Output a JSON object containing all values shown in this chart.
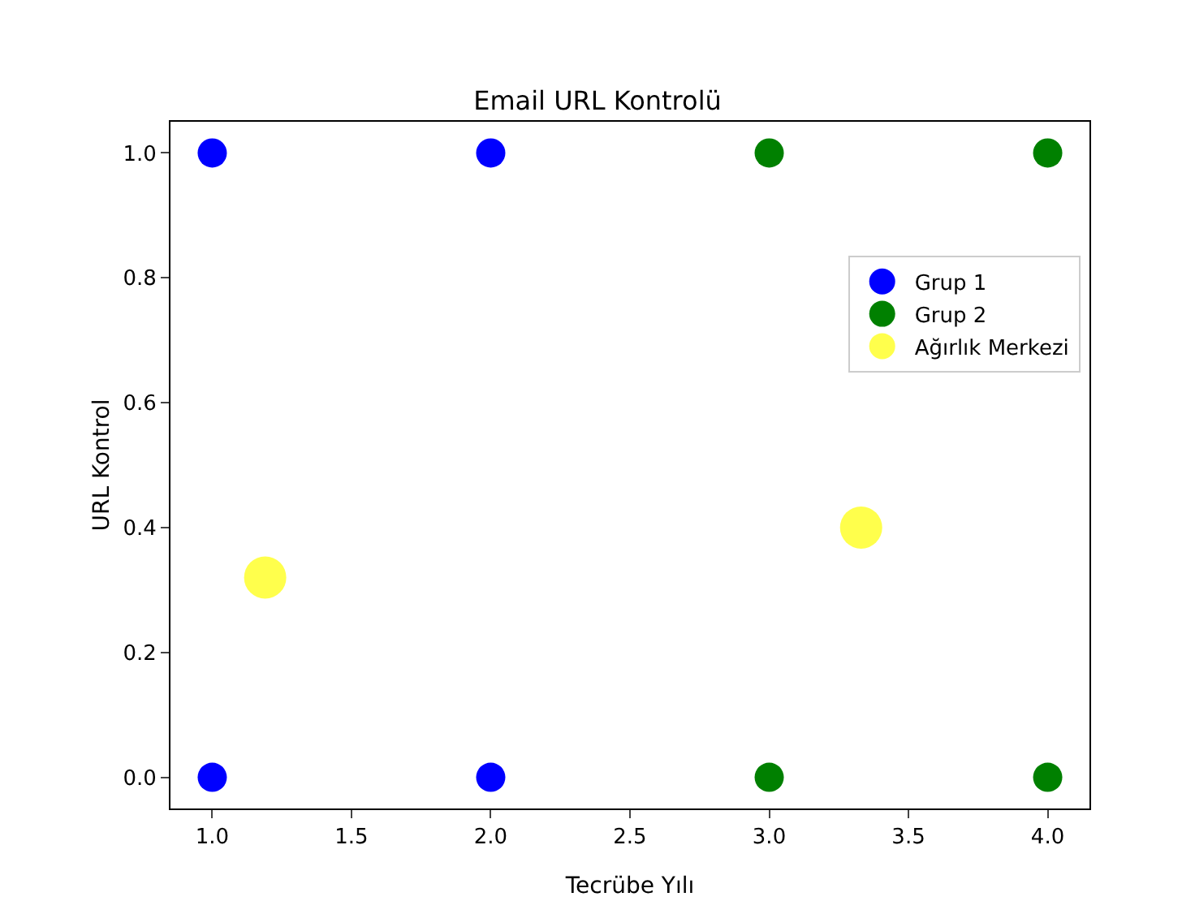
{
  "chart_data": {
    "type": "scatter",
    "title": "Email URL Kontrolü",
    "xlabel": "Tecrübe Yılı",
    "ylabel": "URL Kontrol",
    "xlim": [
      0.85,
      4.15
    ],
    "xticks": [
      {
        "value": 1,
        "label": "1.0"
      },
      1.5,
      {
        "value": 2,
        "label": "2.0"
      },
      2.5,
      {
        "value": 3,
        "label": "3.0"
      },
      3.5,
      {
        "value": 4,
        "label": "4.0"
      }
    ],
    "ylim": [
      -0.05,
      1.05
    ],
    "yticks": [
      {
        "value": 0,
        "label": "0.0"
      },
      0.2,
      0.4,
      0.6,
      0.8,
      {
        "value": 1,
        "label": "1.0"
      }
    ],
    "grid": false,
    "legend": "center right",
    "marker": "circle",
    "series": [
      {
        "name": "Grup 1",
        "color": "#0000ff",
        "x": [
          1,
          1,
          2,
          2
        ],
        "values": [
          1,
          0,
          1,
          0
        ]
      },
      {
        "name": "Grup 2",
        "color": "#008000",
        "x": [
          3,
          3,
          4,
          4
        ],
        "values": [
          1,
          0,
          1,
          0
        ]
      },
      {
        "name": "Ağırlık Merkezi",
        "color": "#ffff00",
        "x": [
          1.19,
          3.33
        ],
        "values": [
          0.32,
          0.4
        ],
        "sizes": [
          1,
          1
        ]
      }
    ]
  }
}
